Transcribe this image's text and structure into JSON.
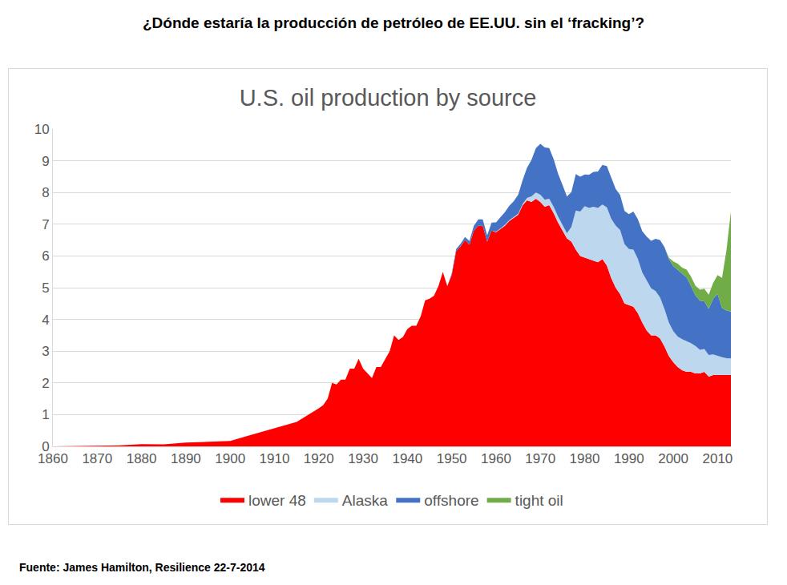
{
  "header": "¿Dónde estaría la producción de petróleo de EE.UU. sin el ‘fracking’?",
  "source": "Fuente: James Hamilton, Resilience 22-7-2014",
  "chart_data": {
    "type": "area",
    "title": "U.S. oil production by source",
    "stacked": true,
    "grid": true,
    "legend": "bottom",
    "xlim": [
      1860,
      2013
    ],
    "xticks": [
      1860,
      1870,
      1880,
      1890,
      1900,
      1910,
      1920,
      1930,
      1940,
      1950,
      1960,
      1970,
      1980,
      1990,
      2000,
      2010
    ],
    "ylim": [
      0,
      10
    ],
    "yticks": [
      0,
      1,
      2,
      3,
      4,
      5,
      6,
      7,
      8,
      9,
      10
    ],
    "x": [
      1860,
      1865,
      1870,
      1875,
      1880,
      1885,
      1890,
      1895,
      1900,
      1905,
      1910,
      1915,
      1920,
      1921,
      1922,
      1923,
      1924,
      1925,
      1926,
      1927,
      1928,
      1929,
      1930,
      1931,
      1932,
      1933,
      1934,
      1935,
      1936,
      1937,
      1938,
      1939,
      1940,
      1941,
      1942,
      1943,
      1944,
      1945,
      1946,
      1947,
      1948,
      1949,
      1950,
      1951,
      1952,
      1953,
      1954,
      1955,
      1956,
      1957,
      1958,
      1959,
      1960,
      1961,
      1962,
      1963,
      1964,
      1965,
      1966,
      1967,
      1968,
      1969,
      1970,
      1971,
      1972,
      1973,
      1974,
      1975,
      1976,
      1977,
      1978,
      1979,
      1980,
      1981,
      1982,
      1983,
      1984,
      1985,
      1986,
      1987,
      1988,
      1989,
      1990,
      1991,
      1992,
      1993,
      1994,
      1995,
      1996,
      1997,
      1998,
      1999,
      2000,
      2001,
      2002,
      2003,
      2004,
      2005,
      2006,
      2007,
      2008,
      2009,
      2010,
      2011,
      2012,
      2013
    ],
    "series": [
      {
        "name": "lower 48",
        "color": "#ff0000",
        "values": [
          0,
          0.01,
          0.01,
          0.03,
          0.07,
          0.06,
          0.12,
          0.14,
          0.17,
          0.37,
          0.57,
          0.77,
          1.2,
          1.3,
          1.5,
          2.0,
          1.95,
          2.1,
          2.1,
          2.45,
          2.45,
          2.76,
          2.45,
          2.3,
          2.15,
          2.5,
          2.5,
          2.75,
          3.0,
          3.5,
          3.35,
          3.45,
          3.7,
          3.8,
          3.8,
          4.1,
          4.6,
          4.65,
          4.75,
          5.05,
          5.5,
          5.05,
          5.4,
          6.15,
          6.3,
          6.5,
          6.35,
          6.8,
          6.95,
          6.95,
          6.45,
          6.8,
          6.75,
          6.85,
          6.95,
          7.1,
          7.2,
          7.3,
          7.6,
          7.75,
          7.7,
          7.8,
          7.7,
          7.55,
          7.6,
          7.35,
          7.05,
          6.8,
          6.55,
          6.45,
          6.2,
          6.0,
          5.95,
          5.9,
          5.85,
          5.8,
          5.9,
          5.7,
          5.3,
          5.0,
          4.8,
          4.5,
          4.45,
          4.4,
          4.2,
          3.9,
          3.65,
          3.5,
          3.5,
          3.4,
          3.15,
          2.85,
          2.65,
          2.5,
          2.4,
          2.35,
          2.35,
          2.3,
          2.3,
          2.35,
          2.2,
          2.25,
          2.25,
          2.25,
          2.25,
          2.25
        ]
      },
      {
        "name": "Alaska",
        "color": "#bdd7ee",
        "values": [
          0,
          0,
          0,
          0,
          0,
          0,
          0,
          0,
          0,
          0,
          0,
          0,
          0,
          0,
          0,
          0,
          0,
          0,
          0,
          0,
          0,
          0,
          0,
          0,
          0,
          0,
          0,
          0,
          0,
          0,
          0,
          0,
          0,
          0,
          0,
          0,
          0,
          0,
          0,
          0,
          0,
          0,
          0,
          0,
          0,
          0,
          0,
          0,
          0,
          0,
          0,
          0,
          0.01,
          0.02,
          0.03,
          0.03,
          0.03,
          0.03,
          0.04,
          0.08,
          0.18,
          0.2,
          0.23,
          0.22,
          0.2,
          0.2,
          0.19,
          0.19,
          0.17,
          0.46,
          1.23,
          1.4,
          1.62,
          1.61,
          1.7,
          1.71,
          1.72,
          1.83,
          1.87,
          1.96,
          2.02,
          1.87,
          1.77,
          1.8,
          1.71,
          1.58,
          1.56,
          1.48,
          1.39,
          1.3,
          1.18,
          1.05,
          0.98,
          0.96,
          0.98,
          0.97,
          0.9,
          0.86,
          0.74,
          0.72,
          0.68,
          0.65,
          0.6,
          0.56,
          0.53,
          0.52
        ]
      },
      {
        "name": "offshore",
        "color": "#4472c4",
        "values": [
          0,
          0,
          0,
          0,
          0,
          0,
          0,
          0,
          0,
          0,
          0,
          0,
          0,
          0,
          0,
          0,
          0,
          0,
          0,
          0,
          0,
          0,
          0,
          0,
          0,
          0,
          0,
          0,
          0,
          0,
          0,
          0,
          0,
          0,
          0,
          0,
          0,
          0,
          0,
          0,
          0,
          0,
          0.05,
          0.07,
          0.08,
          0.1,
          0.12,
          0.15,
          0.2,
          0.2,
          0.2,
          0.25,
          0.3,
          0.35,
          0.4,
          0.45,
          0.5,
          0.6,
          0.75,
          0.95,
          1.15,
          1.4,
          1.6,
          1.65,
          1.6,
          1.5,
          1.35,
          1.25,
          1.15,
          1.1,
          1.15,
          1.1,
          1.0,
          1.05,
          1.1,
          1.15,
          1.25,
          1.3,
          1.3,
          1.15,
          1.1,
          1.05,
          1.1,
          1.2,
          1.25,
          1.3,
          1.4,
          1.5,
          1.65,
          1.8,
          1.95,
          2.0,
          2.05,
          2.1,
          2.05,
          2.0,
          1.8,
          1.6,
          1.55,
          1.5,
          1.45,
          1.75,
          1.95,
          1.55,
          1.5,
          1.48
        ]
      },
      {
        "name": "tight oil",
        "color": "#70ad47",
        "values": [
          0,
          0,
          0,
          0,
          0,
          0,
          0,
          0,
          0,
          0,
          0,
          0,
          0,
          0,
          0,
          0,
          0,
          0,
          0,
          0,
          0,
          0,
          0,
          0,
          0,
          0,
          0,
          0,
          0,
          0,
          0,
          0,
          0,
          0,
          0,
          0,
          0,
          0,
          0,
          0,
          0,
          0,
          0,
          0,
          0,
          0,
          0,
          0,
          0,
          0,
          0,
          0,
          0,
          0,
          0,
          0,
          0,
          0,
          0,
          0,
          0,
          0,
          0,
          0,
          0,
          0,
          0,
          0,
          0,
          0,
          0,
          0,
          0,
          0,
          0,
          0,
          0,
          0,
          0,
          0,
          0,
          0,
          0,
          0,
          0,
          0,
          0,
          0,
          0,
          0,
          0,
          0.05,
          0.15,
          0.2,
          0.2,
          0.25,
          0.3,
          0.3,
          0.35,
          0.4,
          0.45,
          0.5,
          0.6,
          0.95,
          1.9,
          3.15
        ]
      }
    ]
  }
}
